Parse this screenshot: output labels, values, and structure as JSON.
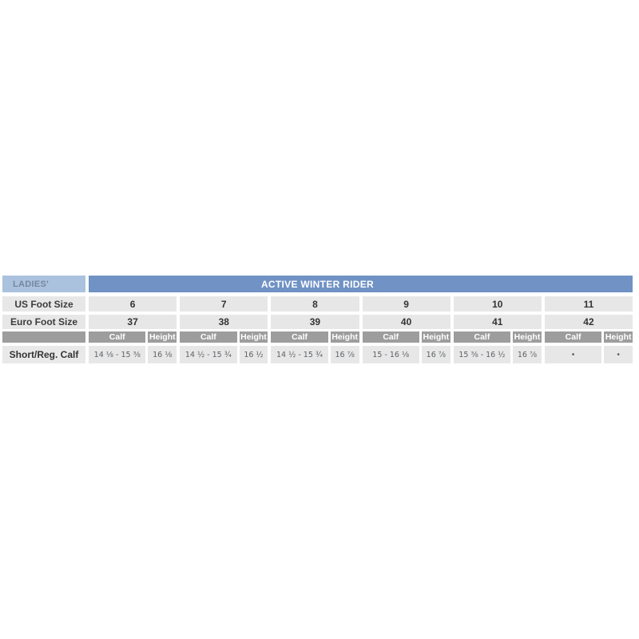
{
  "chart_data": {
    "type": "table",
    "category": "LADIES'",
    "title": "ACTIVE WINTER RIDER",
    "row_labels": {
      "us": "US Foot Size",
      "euro": "Euro Foot Size",
      "fit": "Short/Reg. Calf"
    },
    "sub_headers": {
      "calf": "Calf",
      "height": "Height"
    },
    "columns": [
      {
        "us": "6",
        "euro": "37",
        "calf": "14 ⅛ - 15 ⅜",
        "height": "16 ⅛"
      },
      {
        "us": "7",
        "euro": "38",
        "calf": "14 ½ - 15 ¾",
        "height": "16 ½"
      },
      {
        "us": "8",
        "euro": "39",
        "calf": "14 ½ - 15 ¾",
        "height": "16 ⅞"
      },
      {
        "us": "9",
        "euro": "40",
        "calf": "15 - 16 ⅛",
        "height": "16 ⅞"
      },
      {
        "us": "10",
        "euro": "41",
        "calf": "15 ⅜ - 16 ½",
        "height": "16 ⅞"
      },
      {
        "us": "11",
        "euro": "42",
        "calf": "•",
        "height": "•"
      }
    ],
    "colors": {
      "title_band_blue": "#7092c4",
      "category_band_light_blue": "#aac2de",
      "category_text": "#74879e",
      "cell_light_gray": "#e7e7e7",
      "cell_mid_gray": "#9d9d9d",
      "label_text_dark": "#333333",
      "value_text_gray": "#5d6166",
      "header_text_white": "#ffffff",
      "page_background": "#ffffff"
    }
  }
}
